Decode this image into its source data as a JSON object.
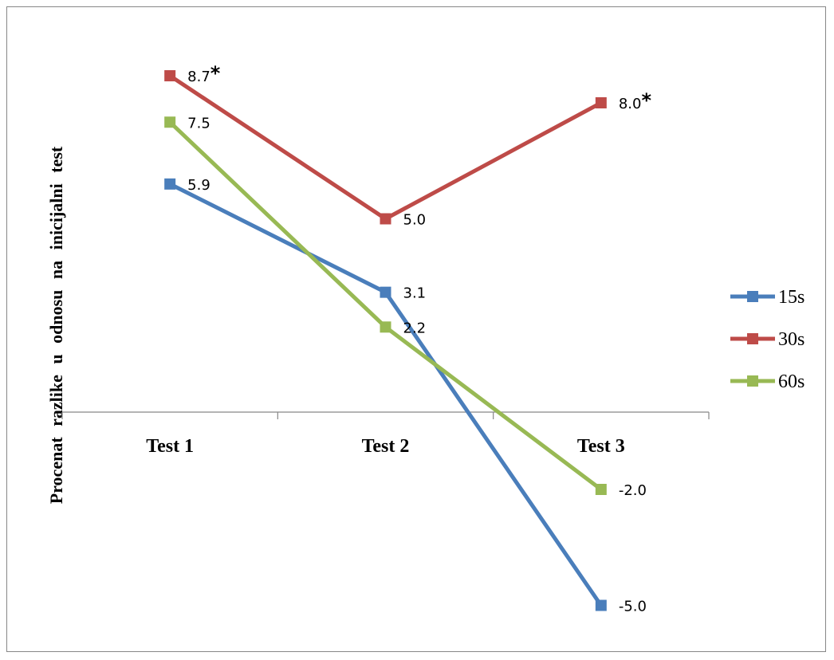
{
  "chart_data": {
    "type": "line",
    "ylabel": "Procenat razlike u odnosu na inicijalni test",
    "xlabel": "",
    "categories": [
      "Test 1",
      "Test 2",
      "Test 3"
    ],
    "ylim": [
      -6.5,
      10
    ],
    "grid": false,
    "legend_position": "right",
    "series": [
      {
        "name": "15s",
        "color": "#4a7ebb",
        "values": [
          5.9,
          3.1,
          -5.0
        ],
        "labels": [
          "5.9",
          "3.1",
          "-5.0"
        ],
        "stars": [
          false,
          false,
          false
        ]
      },
      {
        "name": "30s",
        "color": "#be4b48",
        "values": [
          8.7,
          5.0,
          8.0
        ],
        "labels": [
          "8.7",
          "5.0",
          "8.0"
        ],
        "stars": [
          true,
          false,
          true
        ]
      },
      {
        "name": "60s",
        "color": "#98b954",
        "values": [
          7.5,
          2.2,
          -2.0
        ],
        "labels": [
          "7.5",
          "2.2",
          "-2.0"
        ],
        "stars": [
          false,
          false,
          false
        ]
      }
    ],
    "star_symbol": "*"
  }
}
